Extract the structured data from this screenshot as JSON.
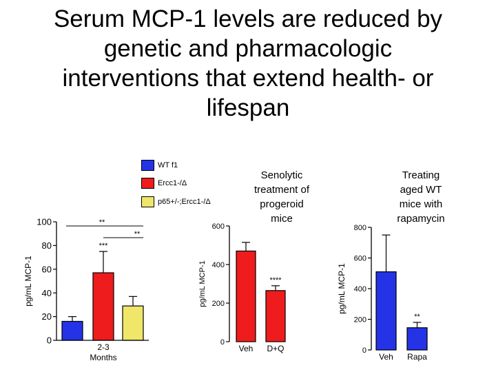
{
  "title_lines": [
    "Serum MCP-1 levels are reduced by",
    "genetic and pharmacologic",
    "interventions that extend health- or",
    "lifespan"
  ],
  "colors": {
    "blue": "#2433e6",
    "red": "#ee1c1c",
    "yellow": "#efe66a",
    "axis": "#000000"
  },
  "legend": [
    {
      "label": "WT f1",
      "color": "#2433e6"
    },
    {
      "label": "Ercc1-/Δ",
      "color": "#ee1c1c"
    },
    {
      "label": "p65+/-;Ercc1-/Δ",
      "color": "#efe66a"
    }
  ],
  "captions": {
    "senolytic": [
      "Senolytic",
      "treatment of",
      "progeroid",
      "mice"
    ],
    "rapamycin": [
      "Treating",
      "aged WT",
      "mice with",
      "rapamycin"
    ]
  },
  "chart_data": [
    {
      "type": "bar",
      "ylabel": "pg/mL MCP-1",
      "ylim": [
        0,
        100
      ],
      "yticks": [
        0,
        20,
        40,
        60,
        80,
        100
      ],
      "group_label": "2-3",
      "xlabel": "Months",
      "bars": [
        {
          "name": "WT f1",
          "value": 16,
          "error": 4,
          "color": "#2433e6"
        },
        {
          "name": "Ercc1-/Δ",
          "value": 57,
          "error": 18,
          "color": "#ee1c1c",
          "annotation": "***"
        },
        {
          "name": "p65+/-;Ercc1-/Δ",
          "value": 29,
          "error": 8,
          "color": "#efe66a"
        }
      ],
      "brackets": [
        {
          "from": 0,
          "to": 2,
          "label": "**"
        },
        {
          "from": 1,
          "to": 2,
          "label": "**"
        }
      ]
    },
    {
      "type": "bar",
      "ylabel": "pg/mL MCP-1",
      "ylim": [
        0,
        600
      ],
      "yticks": [
        0,
        200,
        400,
        600
      ],
      "categories": [
        "Veh",
        "D+Q"
      ],
      "bars": [
        {
          "name": "Veh",
          "value": 470,
          "error": 45,
          "color": "#ee1c1c"
        },
        {
          "name": "D+Q",
          "value": 265,
          "error": 25,
          "color": "#ee1c1c",
          "annotation": "****"
        }
      ]
    },
    {
      "type": "bar",
      "ylabel": "pg/mL MCP-1",
      "ylim": [
        0,
        800
      ],
      "yticks": [
        0,
        200,
        400,
        600,
        800
      ],
      "categories": [
        "Veh",
        "Rapa"
      ],
      "bars": [
        {
          "name": "Veh",
          "value": 510,
          "error": 240,
          "color": "#2433e6"
        },
        {
          "name": "Rapa",
          "value": 145,
          "error": 35,
          "color": "#2433e6",
          "annotation": "**"
        }
      ]
    }
  ]
}
